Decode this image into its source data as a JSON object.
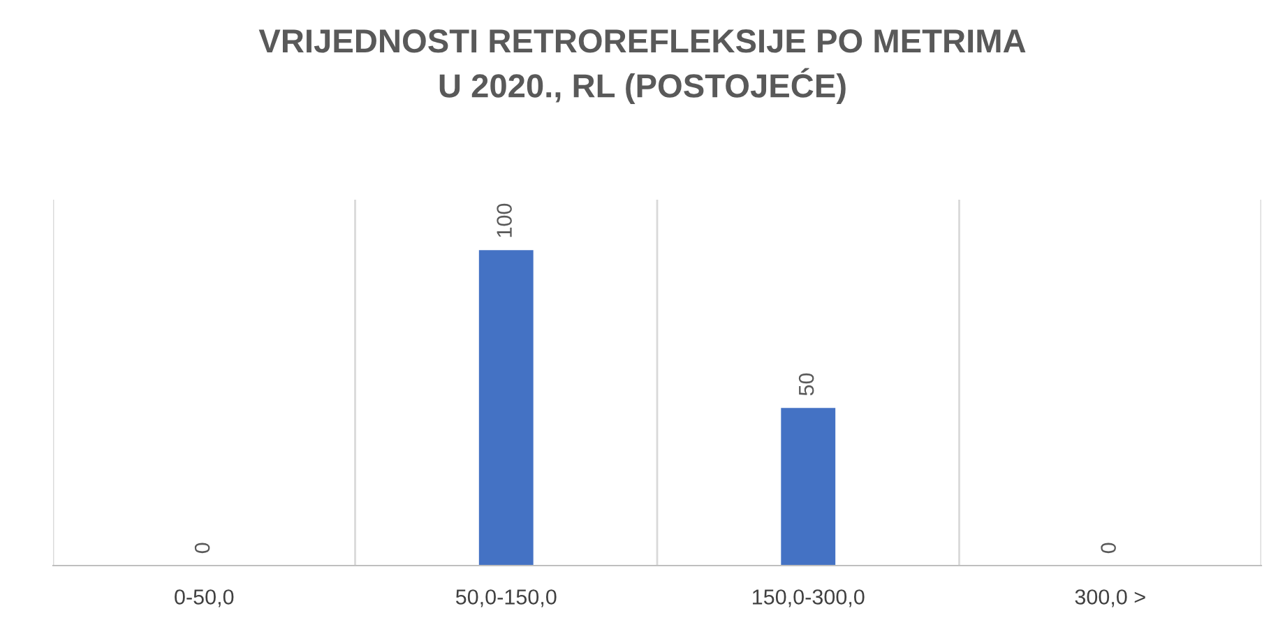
{
  "chart_data": {
    "type": "bar",
    "title": "VRIJEDNOSTI RETROREFLEKSIJE PO METRIMA\nU 2020., RL (POSTOJEĆE)",
    "categories": [
      "0-50,0",
      "50,0-150,0",
      "150,0-300,0",
      "300,0 >"
    ],
    "values": [
      0,
      100,
      50,
      0
    ],
    "color": "#4472c4",
    "data_labels": true,
    "grid": "x",
    "legend": false
  }
}
